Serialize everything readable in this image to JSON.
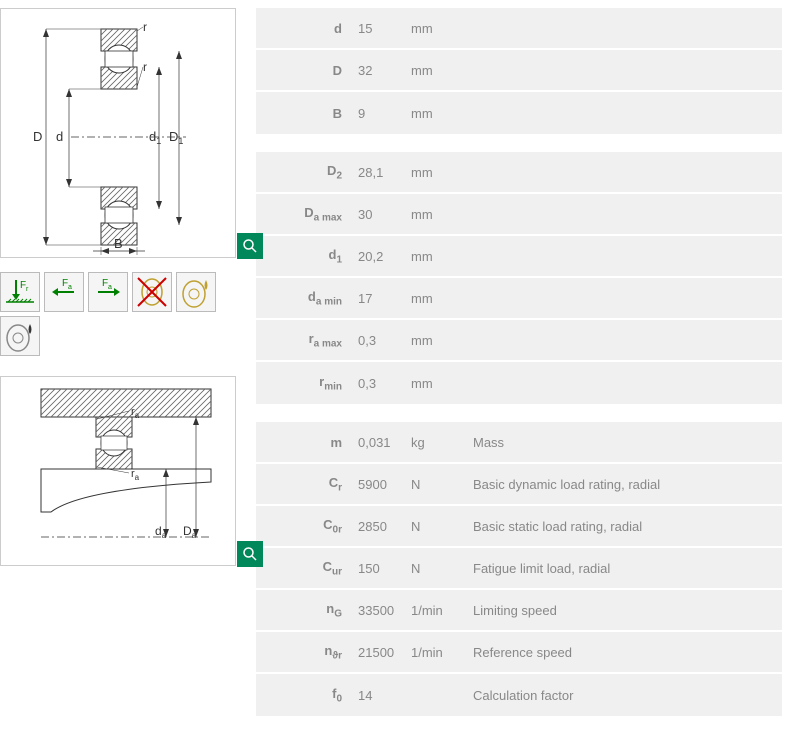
{
  "table1": [
    {
      "label": "d",
      "sub": "",
      "value": "15",
      "unit": "mm"
    },
    {
      "label": "D",
      "sub": "",
      "value": "32",
      "unit": "mm"
    },
    {
      "label": "B",
      "sub": "",
      "value": "9",
      "unit": "mm"
    }
  ],
  "table2": [
    {
      "label": "D",
      "sub": "2",
      "value": "28,1",
      "unit": "mm"
    },
    {
      "label": "D",
      "sub": "a max",
      "value": "30",
      "unit": "mm"
    },
    {
      "label": "d",
      "sub": "1",
      "value": "20,2",
      "unit": "mm"
    },
    {
      "label": "d",
      "sub": "a min",
      "value": "17",
      "unit": "mm"
    },
    {
      "label": "r",
      "sub": "a max",
      "value": "0,3",
      "unit": "mm"
    },
    {
      "label": "r",
      "sub": "min",
      "value": "0,3",
      "unit": "mm"
    }
  ],
  "table3": [
    {
      "label": "m",
      "sub": "",
      "value": "0,031",
      "unit": "kg",
      "desc": "Mass"
    },
    {
      "label": "C",
      "sub": "r",
      "value": "5900",
      "unit": "N",
      "desc": "Basic dynamic load rating, radial"
    },
    {
      "label": "C",
      "sub": "0r",
      "value": "2850",
      "unit": "N",
      "desc": "Basic static load rating, radial"
    },
    {
      "label": "C",
      "sub": "ur",
      "value": "150",
      "unit": "N",
      "desc": "Fatigue limit load, radial"
    },
    {
      "label": "n",
      "sub": "G",
      "value": "33500",
      "unit": "1/min",
      "desc": "Limiting speed"
    },
    {
      "label": "n",
      "sub": "ϑr",
      "value": "21500",
      "unit": "1/min",
      "desc": "Reference speed"
    },
    {
      "label": "f",
      "sub": "0",
      "value": "14",
      "unit": "",
      "desc": "Calculation factor"
    }
  ],
  "colors": {
    "green": "#00875a",
    "rowBg": "#f0f0f0",
    "text": "#888888",
    "border": "#cccccc"
  },
  "dimLabels": {
    "D": "D",
    "d": "d",
    "d1": "d",
    "d1sub": "1",
    "D1": "D",
    "D1sub": "1",
    "B": "B",
    "r": "r",
    "ra": "r",
    "rasub": "a",
    "da": "d",
    "dasub": "a",
    "Da": "D",
    "Dasub": "a"
  }
}
